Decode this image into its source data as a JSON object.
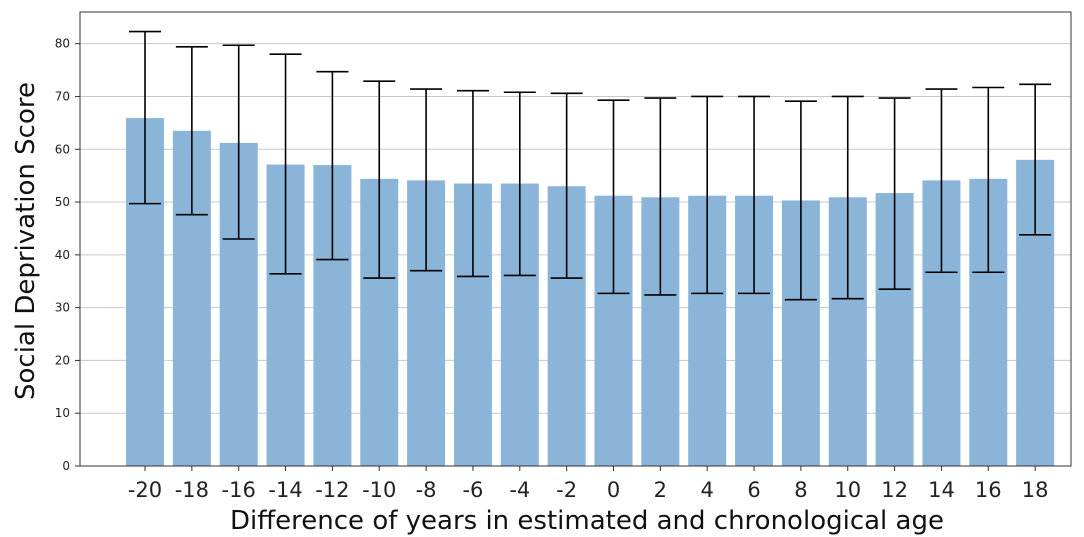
{
  "chart_data": {
    "type": "bar",
    "title": "",
    "xlabel": "Difference of years in estimated and chronological age",
    "ylabel": "Social Deprivation Score",
    "ylim": [
      0,
      86
    ],
    "y_ticks": [
      0,
      10,
      20,
      30,
      40,
      50,
      60,
      70,
      80
    ],
    "grid": "horizontal",
    "bar_color": "#8ab4d8",
    "error_color": "#000000",
    "categories": [
      "-20",
      "-18",
      "-16",
      "-14",
      "-12",
      "-10",
      "-8",
      "-6",
      "-4",
      "-2",
      "0",
      "2",
      "4",
      "6",
      "8",
      "10",
      "12",
      "14",
      "16",
      "18"
    ],
    "values": [
      65.9,
      63.5,
      61.2,
      57.1,
      57.0,
      54.4,
      54.1,
      53.5,
      53.5,
      53.0,
      51.2,
      50.9,
      51.2,
      51.2,
      50.3,
      50.9,
      51.7,
      54.1,
      54.4,
      58.0
    ],
    "error_low": [
      49.7,
      47.6,
      43.0,
      36.4,
      39.1,
      35.6,
      37.0,
      35.9,
      36.1,
      35.6,
      32.7,
      32.4,
      32.7,
      32.7,
      31.5,
      31.7,
      33.5,
      36.7,
      36.7,
      43.8
    ],
    "error_high": [
      82.3,
      79.4,
      79.7,
      78.0,
      74.7,
      72.9,
      71.4,
      71.1,
      70.8,
      70.6,
      69.3,
      69.7,
      70.0,
      70.0,
      69.1,
      70.0,
      69.7,
      71.4,
      71.7,
      72.3
    ]
  }
}
